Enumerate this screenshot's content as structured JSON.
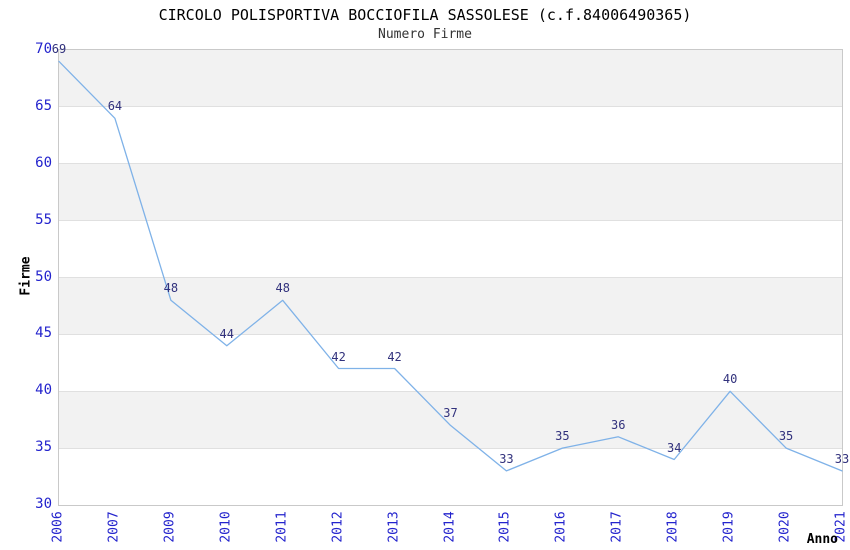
{
  "chart_data": {
    "type": "line",
    "title": "CIRCOLO POLISPORTIVA BOCCIOFILA SASSOLESE (c.f.84006490365)",
    "subtitle": "Numero Firme",
    "xlabel": "Anno",
    "ylabel": "Firme",
    "categories": [
      "2006",
      "2007",
      "2009",
      "2010",
      "2011",
      "2012",
      "2013",
      "2014",
      "2015",
      "2016",
      "2017",
      "2018",
      "2019",
      "2020",
      "2021"
    ],
    "values": [
      69,
      64,
      48,
      44,
      48,
      42,
      42,
      37,
      33,
      35,
      36,
      34,
      40,
      35,
      33
    ],
    "ylim": [
      30,
      70
    ],
    "ytick_step": 5,
    "yticks": [
      30,
      35,
      40,
      45,
      50,
      55,
      60,
      65,
      70
    ],
    "point_labels_shown": true,
    "markers": "none",
    "legend": "none",
    "grid": "horizontal alternating bands, shaded from top band down",
    "colors": {
      "line": "#7fb2e8",
      "point_label": "#32327d",
      "tick_label": "#2323cd",
      "band": "#f2f2f2",
      "gridline": "#e0e0e0",
      "plot_border": "#c9c9c9",
      "title": "#000000",
      "subtitle": "#333333",
      "axis_title": "#000000"
    }
  }
}
